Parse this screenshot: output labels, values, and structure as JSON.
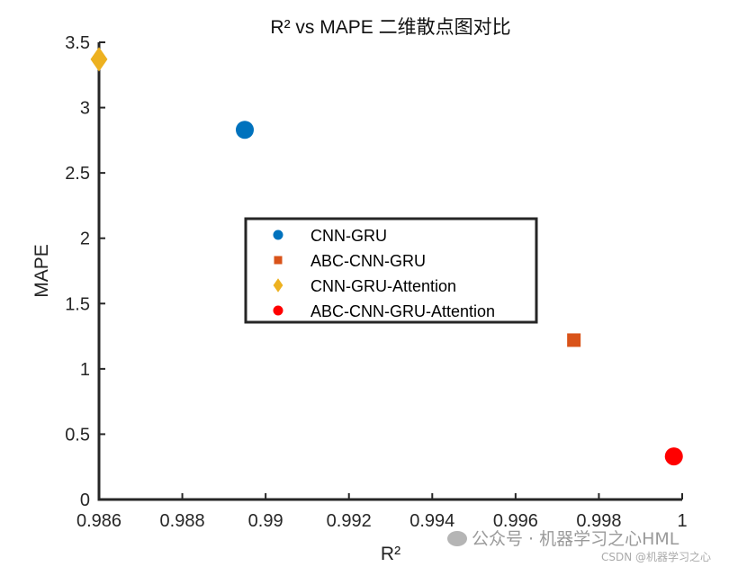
{
  "chart_data": {
    "type": "scatter",
    "title": "R² vs MAPE 二维散点图对比",
    "xlabel": "R²",
    "ylabel": "MAPE",
    "xlim": [
      0.986,
      1.0
    ],
    "ylim": [
      0,
      3.5
    ],
    "x_ticks": [
      0.986,
      0.988,
      0.99,
      0.992,
      0.994,
      0.996,
      0.998,
      1.0
    ],
    "x_tick_labels": [
      "0.986",
      "0.988",
      "0.99",
      "0.992",
      "0.994",
      "0.996",
      "0.998",
      "1"
    ],
    "y_ticks": [
      0,
      0.5,
      1,
      1.5,
      2,
      2.5,
      3,
      3.5
    ],
    "y_tick_labels": [
      "0",
      "0.5",
      "1",
      "1.5",
      "2",
      "2.5",
      "3",
      "3.5"
    ],
    "grid": false,
    "legend_position": "center",
    "series": [
      {
        "name": "CNN-GRU",
        "marker": "circle",
        "color": "#0072BD",
        "x": [
          0.9895
        ],
        "y": [
          2.83
        ]
      },
      {
        "name": "ABC-CNN-GRU",
        "marker": "square",
        "color": "#D95319",
        "x": [
          0.9974
        ],
        "y": [
          1.22
        ]
      },
      {
        "name": "CNN-GRU-Attention",
        "marker": "diamond",
        "color": "#EDB120",
        "x": [
          0.986
        ],
        "y": [
          3.37
        ]
      },
      {
        "name": "ABC-CNN-GRU-Attention",
        "marker": "circle",
        "color": "#FF0000",
        "x": [
          0.9998
        ],
        "y": [
          0.33
        ]
      }
    ]
  },
  "watermark": {
    "text": "公众号 · 机器学习之心HML",
    "small_text": "CSDN @机器学习之心"
  }
}
